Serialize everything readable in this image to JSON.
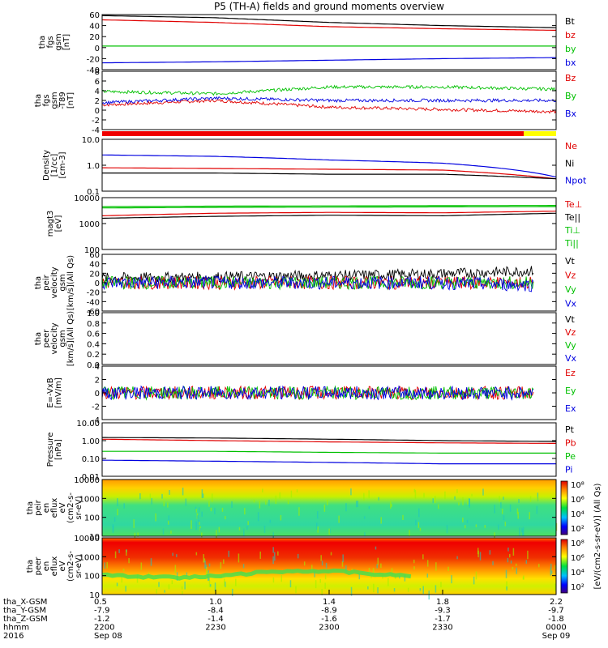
{
  "title": "P5 (TH-A) fields and ground moments overview",
  "panels": [
    {
      "id": "fgs_gsm_nt",
      "ylabel": [
        "tha",
        "fgs",
        "gsm",
        "[nT]"
      ],
      "ticks": [
        "60",
        "40",
        "20",
        "0",
        "-20",
        "-40"
      ],
      "ylim": [
        -40,
        65
      ],
      "legend": [
        {
          "text": "Bt",
          "color": "#000000"
        },
        {
          "text": "bz",
          "color": "#e00000"
        },
        {
          "text": "by",
          "color": "#00c000"
        },
        {
          "text": "bx",
          "color": "#0000e0"
        }
      ]
    },
    {
      "id": "fgs_gsm_minus_t89",
      "ylabel": [
        "tha",
        "fgs",
        "gsm",
        "-T89",
        "[nT]"
      ],
      "ticks": [
        "8",
        "6",
        "4",
        "2",
        "0",
        "-2",
        "-4"
      ],
      "ylim": [
        -5,
        8
      ],
      "legend": [
        {
          "text": "Bz",
          "color": "#e00000"
        },
        {
          "text": "By",
          "color": "#00c000"
        },
        {
          "text": "Bx",
          "color": "#0000e0"
        }
      ]
    },
    {
      "id": "density",
      "ylabel": [
        "Density",
        "[1/cc]",
        "[cm-3]"
      ],
      "ticks": [
        "10.0",
        "1.0",
        "0.1"
      ],
      "ylim": [
        0.1,
        10
      ],
      "log": true,
      "legend": [
        {
          "text": "Ne",
          "color": "#e00000"
        },
        {
          "text": "Ni",
          "color": "#000000"
        },
        {
          "text": "Npot",
          "color": "#0000e0"
        }
      ]
    },
    {
      "id": "temperature",
      "ylabel": [
        "magt3",
        "[eV]"
      ],
      "ticks": [
        "10000",
        "1000",
        "100"
      ],
      "ylim": [
        100,
        10000
      ],
      "log": true,
      "legend": [
        {
          "text": "Te⊥",
          "color": "#e00000"
        },
        {
          "text": "Te||",
          "color": "#000000"
        },
        {
          "text": "Ti⊥",
          "color": "#00c000"
        },
        {
          "text": "Ti||",
          "color": "#00c000"
        }
      ]
    },
    {
      "id": "peir_velocity",
      "ylabel": [
        "tha",
        "peir",
        "velocity",
        "gsm",
        "[km/s](All Qs)"
      ],
      "ticks": [
        "60",
        "40",
        "20",
        "0",
        "-20",
        "-40",
        "-60"
      ],
      "ylim": [
        -60,
        60
      ],
      "legend": [
        {
          "text": "Vt",
          "color": "#000000"
        },
        {
          "text": "Vz",
          "color": "#e00000"
        },
        {
          "text": "Vy",
          "color": "#00c000"
        },
        {
          "text": "Vx",
          "color": "#0000e0"
        }
      ]
    },
    {
      "id": "peer_velocity",
      "ylabel": [
        "tha",
        "peer",
        "velocity",
        "gsm",
        "[km/s](All Qs)"
      ],
      "ticks": [
        "1.0",
        "0.8",
        "0.6",
        "0.4",
        "0.2",
        "0.0"
      ],
      "ylim": [
        0,
        1
      ],
      "legend": [
        {
          "text": "Vt",
          "color": "#000000"
        },
        {
          "text": "Vz",
          "color": "#e00000"
        },
        {
          "text": "Vy",
          "color": "#00c000"
        },
        {
          "text": "Vx",
          "color": "#0000e0"
        }
      ]
    },
    {
      "id": "efield",
      "ylabel": [
        "E=-VxB",
        "[mV/m]"
      ],
      "ticks": [
        "4",
        "2",
        "0",
        "-2",
        "-4"
      ],
      "ylim": [
        -4,
        4
      ],
      "legend": [
        {
          "text": "Ez",
          "color": "#e00000"
        },
        {
          "text": "Ey",
          "color": "#00c000"
        },
        {
          "text": "Ex",
          "color": "#0000e0"
        }
      ]
    },
    {
      "id": "pressure",
      "ylabel": [
        "Pressure",
        "[nPa]"
      ],
      "ticks": [
        "10.00",
        "1.00",
        "0.10",
        "0.01"
      ],
      "ylim": [
        0.01,
        10
      ],
      "log": true,
      "legend": [
        {
          "text": "Pt",
          "color": "#000000"
        },
        {
          "text": "Pb",
          "color": "#e00000"
        },
        {
          "text": "Pe",
          "color": "#00c000"
        },
        {
          "text": "Pi",
          "color": "#0000e0"
        }
      ]
    },
    {
      "id": "peir_eflux",
      "ylabel": [
        "tha",
        "peir",
        "en",
        "eflux",
        "eV",
        "(cm2-s-",
        "sr-eV)"
      ],
      "ticks": [
        "10000",
        "1000",
        "100",
        "10"
      ],
      "ylim": [
        10,
        20000
      ],
      "log": true,
      "colorbar": [
        "10⁸",
        "10⁶",
        "10⁴",
        "10²"
      ]
    },
    {
      "id": "peer_eflux",
      "ylabel": [
        "tha",
        "peer",
        "en",
        "eflux",
        "eV",
        "(cm2-s-",
        "sr-eV)"
      ],
      "ticks": [
        "10000",
        "1000",
        "100",
        "10"
      ],
      "ylim": [
        10,
        20000
      ],
      "log": true,
      "colorbar": [
        "10⁸",
        "10⁶",
        "10⁴",
        "10²"
      ]
    }
  ],
  "colorbar_label": "[eV/(cm2-s-sr-eV)] (All Qs)",
  "xaxis": {
    "row_labels": [
      "tha_X-GSM",
      "tha_Y-GSM",
      "tha_Z-GSM",
      "hhmm",
      "2016"
    ],
    "columns": [
      {
        "values": [
          "0.5",
          "-7.9",
          "-1.2",
          "2200",
          "Sep 08"
        ]
      },
      {
        "values": [
          "1.0",
          "-8.4",
          "-1.4",
          "2230",
          ""
        ]
      },
      {
        "values": [
          "1.4",
          "-8.9",
          "-1.6",
          "2300",
          ""
        ]
      },
      {
        "values": [
          "1.8",
          "-9.3",
          "-1.7",
          "2330",
          ""
        ]
      },
      {
        "values": [
          "2.2",
          "-9.7",
          "-1.8",
          "0000",
          "Sep 09"
        ]
      }
    ]
  },
  "chart_data": {
    "type": "line",
    "title": "P5 (TH-A) fields and ground moments overview",
    "x": [
      "2200",
      "2230",
      "2300",
      "2330",
      "0000"
    ],
    "xlabel": "hhmm",
    "series": [
      {
        "panel": "fgs_gsm_nt",
        "name": "Bt",
        "values": [
          63,
          59,
          50,
          44,
          40
        ]
      },
      {
        "panel": "fgs_gsm_nt",
        "name": "bz",
        "values": [
          55,
          50,
          42,
          38,
          35
        ]
      },
      {
        "panel": "fgs_gsm_nt",
        "name": "by",
        "values": [
          5,
          5,
          5,
          5,
          5
        ]
      },
      {
        "panel": "fgs_gsm_nt",
        "name": "bx",
        "values": [
          -27,
          -25,
          -22,
          -19,
          -17
        ]
      },
      {
        "panel": "fgs_gsm_minus_t89",
        "name": "Bz",
        "values": [
          0.5,
          1.5,
          0,
          -0.5,
          -1
        ]
      },
      {
        "panel": "fgs_gsm_minus_t89",
        "name": "By",
        "values": [
          3.5,
          3,
          4.5,
          4.5,
          4
        ]
      },
      {
        "panel": "fgs_gsm_minus_t89",
        "name": "Bx",
        "values": [
          1,
          2,
          1.5,
          1.5,
          1.5
        ]
      },
      {
        "panel": "density",
        "name": "Ne",
        "values": [
          0.8,
          0.75,
          0.7,
          0.65,
          0.3
        ]
      },
      {
        "panel": "density",
        "name": "Ni",
        "values": [
          0.5,
          0.5,
          0.45,
          0.45,
          0.3
        ]
      },
      {
        "panel": "density",
        "name": "Npot",
        "values": [
          2.5,
          2.2,
          1.6,
          1.2,
          0.35
        ]
      },
      {
        "panel": "temperature",
        "name": "Te⊥",
        "values": [
          2000,
          2500,
          2700,
          2600,
          3000
        ]
      },
      {
        "panel": "temperature",
        "name": "Te||",
        "values": [
          1600,
          1900,
          2100,
          2000,
          2500
        ]
      },
      {
        "panel": "temperature",
        "name": "Ti⊥",
        "values": [
          4500,
          4700,
          4800,
          4900,
          5000
        ]
      },
      {
        "panel": "temperature",
        "name": "Ti||",
        "values": [
          4000,
          4200,
          4300,
          4400,
          4500
        ]
      },
      {
        "panel": "peir_velocity",
        "name": "Vt",
        "values": [
          10,
          12,
          15,
          18,
          25
        ]
      },
      {
        "panel": "peir_velocity",
        "name": "Vz",
        "values": [
          0,
          0,
          0,
          0,
          0
        ]
      },
      {
        "panel": "peir_velocity",
        "name": "Vy",
        "values": [
          0,
          0,
          0,
          0,
          0
        ]
      },
      {
        "panel": "peir_velocity",
        "name": "Vx",
        "values": [
          0,
          0,
          0,
          0,
          -5
        ]
      },
      {
        "panel": "efield",
        "name": "Ez",
        "values": [
          0,
          0,
          0,
          0,
          0
        ]
      },
      {
        "panel": "efield",
        "name": "Ey",
        "values": [
          0,
          0,
          0,
          0,
          0
        ]
      },
      {
        "panel": "efield",
        "name": "Ex",
        "values": [
          0,
          0,
          0,
          0,
          0
        ]
      },
      {
        "panel": "pressure",
        "name": "Pt",
        "values": [
          1.5,
          1.4,
          1.2,
          1.0,
          0.9
        ]
      },
      {
        "panel": "pressure",
        "name": "Pb",
        "values": [
          1.2,
          1.0,
          0.85,
          0.75,
          0.7
        ]
      },
      {
        "panel": "pressure",
        "name": "Pe",
        "values": [
          0.25,
          0.25,
          0.22,
          0.2,
          0.2
        ]
      },
      {
        "panel": "pressure",
        "name": "Pi",
        "values": [
          0.08,
          0.07,
          0.06,
          0.05,
          0.05
        ]
      }
    ]
  }
}
